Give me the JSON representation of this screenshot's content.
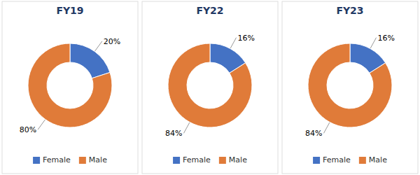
{
  "chart_data": [
    {
      "type": "donut",
      "title": "FY19",
      "categories": [
        "Female",
        "Male"
      ],
      "values": [
        20,
        80
      ],
      "value_labels": [
        "20%",
        "80%"
      ],
      "colors": [
        "#4472C4",
        "#E07B39"
      ],
      "data_labels": true,
      "legend": "bottom"
    },
    {
      "type": "donut",
      "title": "FY22",
      "categories": [
        "Female",
        "Male"
      ],
      "values": [
        16,
        84
      ],
      "value_labels": [
        "16%",
        "84%"
      ],
      "colors": [
        "#4472C4",
        "#E07B39"
      ],
      "data_labels": true,
      "legend": "bottom"
    },
    {
      "type": "donut",
      "title": "FY23",
      "categories": [
        "Female",
        "Male"
      ],
      "values": [
        16,
        84
      ],
      "value_labels": [
        "16%",
        "84%"
      ],
      "colors": [
        "#4472C4",
        "#E07B39"
      ],
      "data_labels": true,
      "legend": "bottom"
    }
  ]
}
